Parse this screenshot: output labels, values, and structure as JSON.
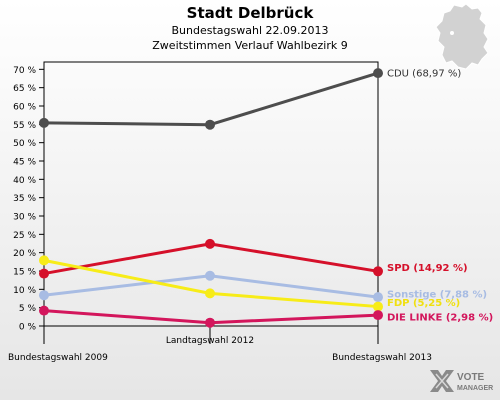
{
  "chart_data": {
    "type": "line",
    "title": "Stadt Delbrück",
    "subtitle": "Bundestagswahl 22.09.2013",
    "subtitle2": "Zweitstimmen Verlauf Wahlbezirk 9",
    "categories": [
      "Bundestagswahl 2009",
      "Landtagswahl 2012",
      "Bundestagswahl 2013"
    ],
    "y_ticks": [
      "0 %",
      "5 %",
      "10 %",
      "15 %",
      "20 %",
      "25 %",
      "30 %",
      "35 %",
      "40 %",
      "45 %",
      "50 %",
      "55 %",
      "60 %",
      "65 %",
      "70 %"
    ],
    "ylim": [
      0,
      72
    ],
    "grid": false,
    "series": [
      {
        "name": "CDU",
        "values": [
          55.4,
          54.9,
          68.97
        ],
        "color": "#4d4d4d",
        "label": "CDU (68,97 %)",
        "label_color": "#333333"
      },
      {
        "name": "SPD",
        "values": [
          14.3,
          22.4,
          14.92
        ],
        "color": "#d5102a",
        "label": "SPD (14,92 %)",
        "label_color": "#d5102a"
      },
      {
        "name": "Sonstige",
        "values": [
          8.4,
          13.7,
          7.88
        ],
        "color": "#a8bce3",
        "label": "Sonstige (7,88 %)",
        "label_color": "#a8bce3"
      },
      {
        "name": "FDP",
        "values": [
          17.9,
          8.9,
          5.3
        ],
        "color": "#f7ec18",
        "label": "FDP (5,25 %)",
        "label_color": "#f0e010"
      },
      {
        "name": "DIE LINKE",
        "values": [
          4.2,
          0.9,
          2.98
        ],
        "color": "#d3165c",
        "label": "DIE LINKE (2,98 %)",
        "label_color": "#d3165c"
      }
    ]
  },
  "logo": {
    "line1": "VOTE",
    "line2": "MANAGER"
  }
}
